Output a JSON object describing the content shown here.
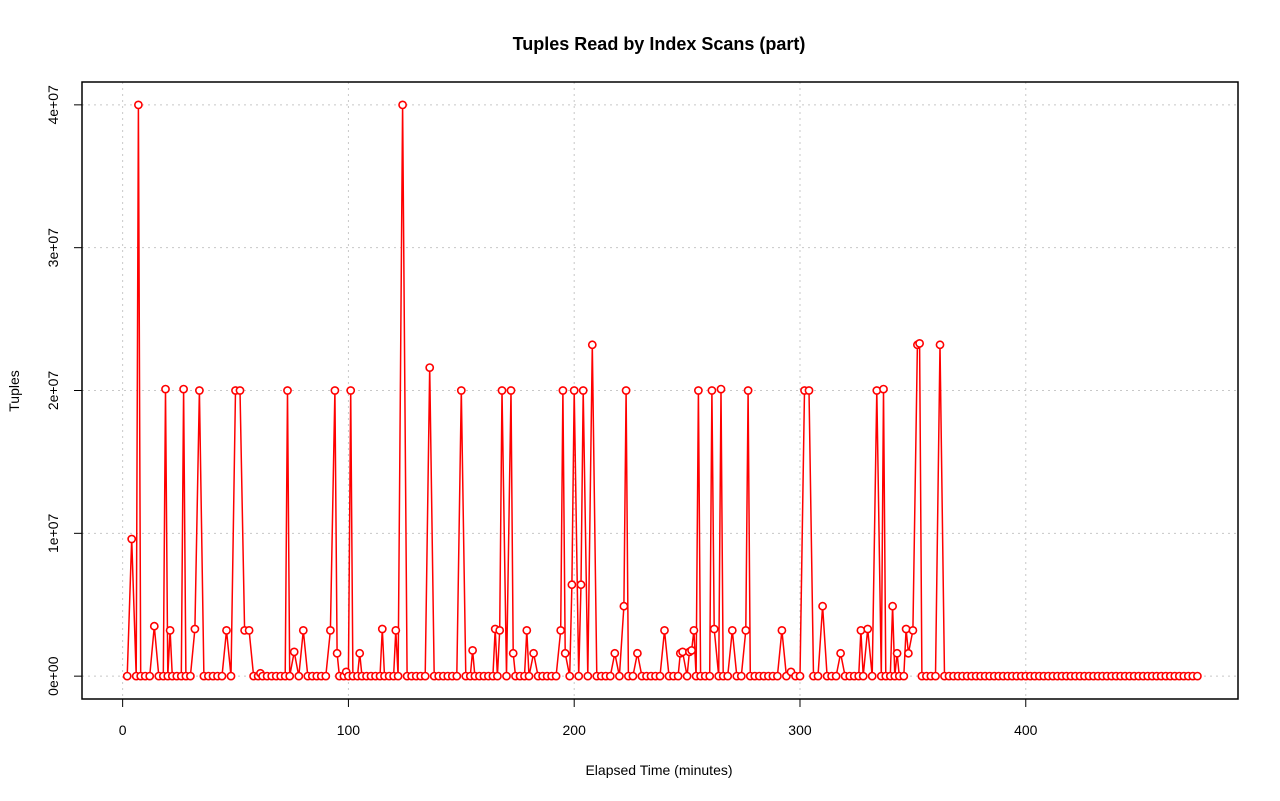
{
  "chart_data": {
    "type": "line",
    "title": "Tuples Read by Index Scans (part)",
    "xlabel": "Elapsed Time (minutes)",
    "ylabel": "Tuples",
    "xlim": [
      -18,
      494
    ],
    "ylim": [
      -1600000,
      41600000
    ],
    "x_ticks": [
      0,
      100,
      200,
      300,
      400
    ],
    "y_ticks": [
      0,
      10000000,
      20000000,
      30000000,
      40000000
    ],
    "x_tick_labels": [
      "0",
      "100",
      "200",
      "300",
      "400"
    ],
    "y_tick_labels": [
      "0e+00",
      "1e+07",
      "2e+07",
      "3e+07",
      "4e+07"
    ],
    "grid": true,
    "marker": "open-circle",
    "series": [
      {
        "color": "#ff0000",
        "peaks": [
          [
            4,
            9600000
          ],
          [
            7,
            40000000
          ],
          [
            14,
            3500000
          ],
          [
            19,
            20100000
          ],
          [
            21,
            3200000
          ],
          [
            27,
            20100000
          ],
          [
            32,
            3300000
          ],
          [
            34,
            20000000
          ],
          [
            46,
            3200000
          ],
          [
            50,
            20000000
          ],
          [
            52,
            20000000
          ],
          [
            54,
            3200000
          ],
          [
            56,
            3200000
          ],
          [
            61,
            200000
          ],
          [
            73,
            20000000
          ],
          [
            76,
            1700000
          ],
          [
            80,
            3200000
          ],
          [
            92,
            3200000
          ],
          [
            94,
            20000000
          ],
          [
            95,
            1600000
          ],
          [
            99,
            300000
          ],
          [
            101,
            20000000
          ],
          [
            105,
            1600000
          ],
          [
            115,
            3300000
          ],
          [
            121,
            3200000
          ],
          [
            124,
            40000000
          ],
          [
            136,
            21600000
          ],
          [
            150,
            20000000
          ],
          [
            155,
            1800000
          ],
          [
            165,
            3300000
          ],
          [
            167,
            3200000
          ],
          [
            168,
            20000000
          ],
          [
            172,
            20000000
          ],
          [
            173,
            1600000
          ],
          [
            179,
            3200000
          ],
          [
            182,
            1600000
          ],
          [
            194,
            3200000
          ],
          [
            195,
            20000000
          ],
          [
            196,
            1600000
          ],
          [
            199,
            6400000
          ],
          [
            200,
            20000000
          ],
          [
            203,
            6400000
          ],
          [
            204,
            20000000
          ],
          [
            208,
            23200000
          ],
          [
            218,
            1600000
          ],
          [
            222,
            4900000
          ],
          [
            223,
            20000000
          ],
          [
            228,
            1600000
          ],
          [
            240,
            3200000
          ],
          [
            247,
            1600000
          ],
          [
            248,
            1700000
          ],
          [
            251,
            1700000
          ],
          [
            252,
            1800000
          ],
          [
            253,
            3200000
          ],
          [
            255,
            20000000
          ],
          [
            261,
            20000000
          ],
          [
            262,
            3300000
          ],
          [
            265,
            20100000
          ],
          [
            270,
            3200000
          ],
          [
            276,
            3200000
          ],
          [
            277,
            20000000
          ],
          [
            292,
            3200000
          ],
          [
            296,
            300000
          ],
          [
            302,
            20000000
          ],
          [
            304,
            20000000
          ],
          [
            310,
            4900000
          ],
          [
            318,
            1600000
          ],
          [
            327,
            3200000
          ],
          [
            330,
            3300000
          ],
          [
            334,
            20000000
          ],
          [
            337,
            20100000
          ],
          [
            341,
            4900000
          ],
          [
            343,
            1600000
          ],
          [
            347,
            3300000
          ],
          [
            348,
            1600000
          ],
          [
            350,
            3200000
          ],
          [
            352,
            23200000
          ],
          [
            353,
            23300000
          ],
          [
            362,
            23200000
          ]
        ],
        "baseline_range": [
          2,
          477
        ],
        "baseline_value": 0
      }
    ]
  }
}
